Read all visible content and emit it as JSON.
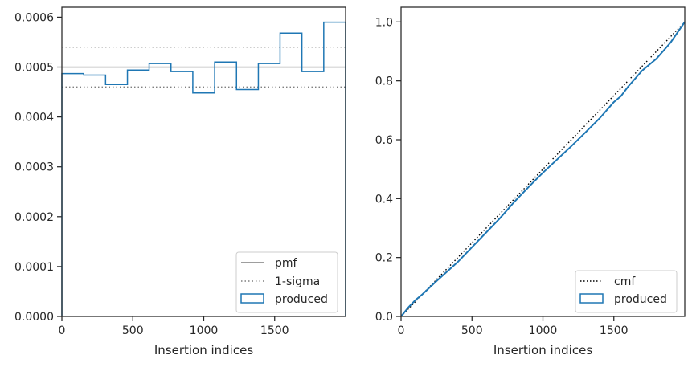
{
  "chart_data": [
    {
      "type": "histogram",
      "xlabel": "Insertion indices",
      "ylabel": "",
      "xlim": [
        0,
        2000
      ],
      "ylim": [
        0,
        0.00062
      ],
      "xticks": [
        0,
        500,
        1000,
        1500
      ],
      "yticks": [
        0,
        0.0001,
        0.0002,
        0.0003,
        0.0004,
        0.0005,
        0.0006
      ],
      "ytick_labels": [
        "0.0000",
        "0.0001",
        "0.0002",
        "0.0003",
        "0.0004",
        "0.0005",
        "0.0006"
      ],
      "xtick_labels": [
        "0",
        "500",
        "1000",
        "1500"
      ],
      "bin_edges": [
        0,
        154,
        308,
        462,
        615,
        769,
        923,
        1077,
        1231,
        1385,
        1538,
        1692,
        1846,
        2000
      ],
      "series": [
        {
          "name": "produced",
          "style": "step",
          "color": "#1f77b4",
          "values": [
            0.000487,
            0.000484,
            0.000465,
            0.000494,
            0.000507,
            0.000491,
            0.000448,
            0.00051,
            0.000455,
            0.000507,
            0.000568,
            0.000491,
            0.00059
          ]
        }
      ],
      "reference_lines": [
        {
          "name": "pmf",
          "y": 0.0005,
          "color": "#7f7f7f",
          "dash": "solid"
        },
        {
          "name": "1-sigma",
          "y": 0.00054,
          "color": "#7f7f7f",
          "dash": "dotted"
        },
        {
          "name": "",
          "y": 0.00046,
          "color": "#7f7f7f",
          "dash": "dotted"
        }
      ],
      "legend": {
        "position": "lower-right",
        "entries": [
          "pmf",
          "1-sigma",
          "produced"
        ]
      }
    },
    {
      "type": "line",
      "xlabel": "Insertion indices",
      "ylabel": "",
      "xlim": [
        0,
        2000
      ],
      "ylim": [
        0,
        1.05
      ],
      "xticks": [
        0,
        500,
        1000,
        1500
      ],
      "yticks": [
        0,
        0.2,
        0.4,
        0.6,
        0.8,
        1.0
      ],
      "ytick_labels": [
        "0.0",
        "0.2",
        "0.4",
        "0.6",
        "0.8",
        "1.0"
      ],
      "xtick_labels": [
        "0",
        "500",
        "1000",
        "1500"
      ],
      "series": [
        {
          "name": "cmf",
          "style": "dotted",
          "color": "#000000",
          "x": [
            0,
            2000
          ],
          "y": [
            0,
            1.0
          ]
        },
        {
          "name": "produced",
          "style": "step",
          "color": "#1f77b4",
          "x": [
            0,
            50,
            100,
            150,
            250,
            400,
            500,
            600,
            700,
            800,
            900,
            1000,
            1100,
            1200,
            1300,
            1400,
            1500,
            1550,
            1600,
            1700,
            1800,
            1900,
            2000
          ],
          "y": [
            0,
            0.03,
            0.055,
            0.075,
            0.12,
            0.185,
            0.235,
            0.285,
            0.335,
            0.39,
            0.44,
            0.488,
            0.533,
            0.578,
            0.625,
            0.673,
            0.728,
            0.748,
            0.78,
            0.835,
            0.875,
            0.93,
            1.0
          ]
        }
      ],
      "legend": {
        "position": "lower-right",
        "entries": [
          "cmf",
          "produced"
        ]
      }
    }
  ]
}
